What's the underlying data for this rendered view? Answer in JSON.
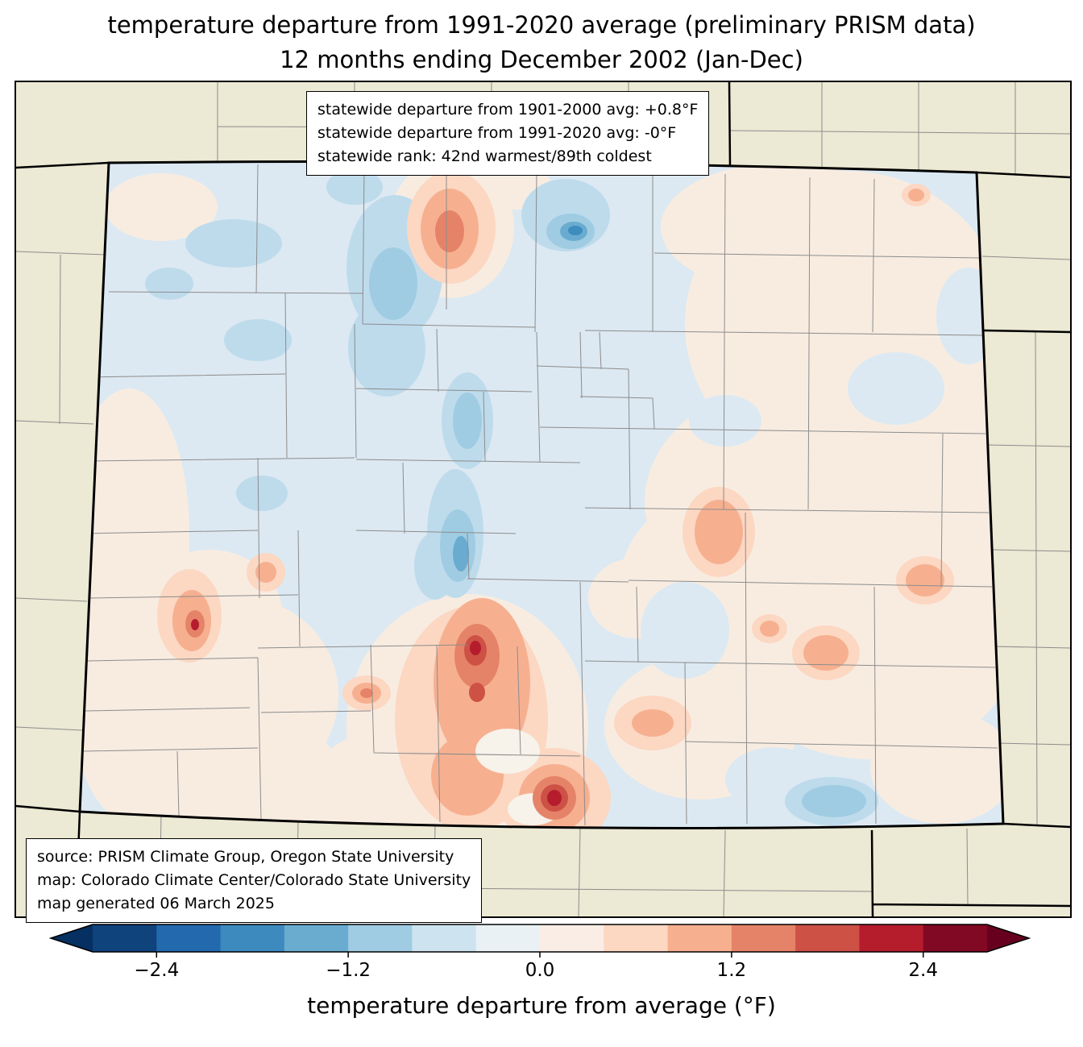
{
  "title": {
    "line1": "temperature departure from 1991-2020 average (preliminary PRISM data)",
    "line2": "12 months ending December 2002 (Jan-Dec)"
  },
  "stats_box": {
    "line1": "statewide departure from 1901-2000 avg: +0.8°F",
    "line2": "statewide departure from 1991-2020 avg: -0°F",
    "line3": "statewide rank: 42nd warmest/89th coldest"
  },
  "source_box": {
    "line1": "source: PRISM Climate Group, Oregon State University",
    "line2": "map: Colorado Climate Center/Colorado State University",
    "line3": "map generated 06 March 2025"
  },
  "colorbar": {
    "label": "temperature departure from average (°F)",
    "range": [
      -2.8,
      2.8
    ],
    "ticks": [
      {
        "label": "−2.4",
        "value": -2.4
      },
      {
        "label": "−1.2",
        "value": -1.2
      },
      {
        "label": "0.0",
        "value": 0.0
      },
      {
        "label": "1.2",
        "value": 1.2
      },
      {
        "label": "2.4",
        "value": 2.4
      }
    ],
    "segment_colors": [
      "#0f437c",
      "#2369ae",
      "#3c8abe",
      "#6aacd0",
      "#9fcce2",
      "#cde3ef",
      "#e9f1f4",
      "#f9ede6",
      "#fcd7c2",
      "#f6b090",
      "#e58368",
      "#ce5146",
      "#b51d2d",
      "#820923"
    ],
    "arrow_left": "#053061",
    "arrow_right": "#67001f"
  },
  "map": {
    "palette": {
      "land": "#ece9d4",
      "base": "#dce9f2",
      "pink": "#f8ece1",
      "blue_light": "#bedbec",
      "blue_med": "#9fcce2",
      "blue_strong": "#6aacd0",
      "blue_deep": "#3f8cbf",
      "white_zero": "#f7f2ea",
      "orange_light": "#fcd7c2",
      "orange": "#f6b090",
      "orange_strong": "#e58368",
      "red": "#ce5146",
      "red_dark": "#b51d2d"
    }
  }
}
